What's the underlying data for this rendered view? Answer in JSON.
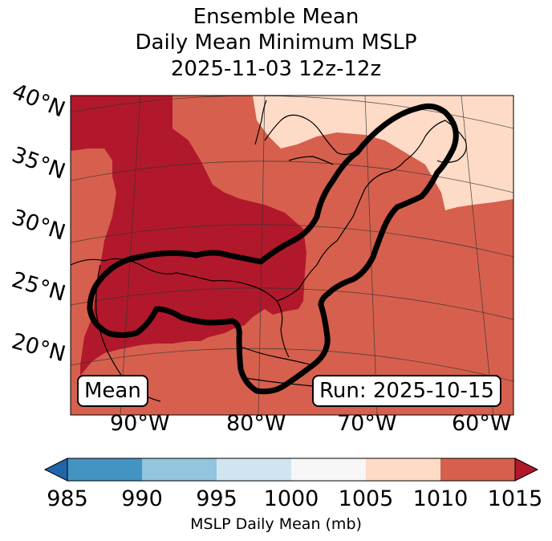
{
  "title": {
    "line1": "Ensemble Mean",
    "line2": "Daily Mean Minimum MSLP",
    "line3": "2025-11-03 12z-12z"
  },
  "map": {
    "lat_labels": [
      "40°N",
      "35°N",
      "30°N",
      "25°N",
      "20°N"
    ],
    "lon_labels": [
      "90°W",
      "80°W",
      "70°W",
      "60°W"
    ],
    "mean_label": "Mean",
    "run_label": "Run: 2025-10-15",
    "fill_colors": {
      "darkest": "#b2182b",
      "dark": "#d6604d",
      "light": "#fddbc7"
    }
  },
  "colorbar": {
    "ticks": [
      "985",
      "990",
      "995",
      "1000",
      "1005",
      "1010",
      "1015"
    ],
    "colors": [
      "#2166ac",
      "#4393c3",
      "#92c5de",
      "#d1e5f0",
      "#f7f7f7",
      "#fddbc7",
      "#d6604d",
      "#b2182b"
    ],
    "label": "MSLP Daily Mean (mb)"
  }
}
